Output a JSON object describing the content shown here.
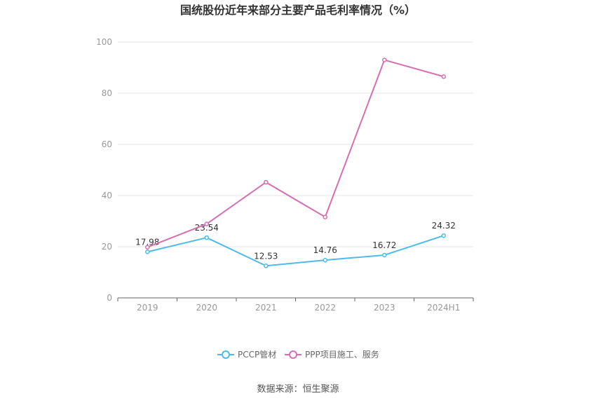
{
  "chart_data": {
    "type": "line",
    "title": "国统股份近年来部分主要产品毛利率情况（%）",
    "categories": [
      "2019",
      "2020",
      "2021",
      "2022",
      "2023",
      "2024H1"
    ],
    "ylim": [
      0,
      100
    ],
    "yticks": [
      "0",
      "20",
      "40",
      "60",
      "80",
      "100"
    ],
    "grid": true,
    "legend_position": "bottom",
    "series": [
      {
        "name": "PCCP管材",
        "color": "#4dbbe8",
        "values": [
          17.98,
          23.54,
          12.53,
          14.76,
          16.72,
          24.32
        ],
        "labels": [
          "17.98",
          "23.54",
          "12.53",
          "14.76",
          "16.72",
          "24.32"
        ]
      },
      {
        "name": "PPP项目施工、服务",
        "color": "#d46fb4",
        "values": [
          19.8,
          28.9,
          45.2,
          31.6,
          93.0,
          86.5
        ]
      }
    ]
  },
  "footer": {
    "source": "数据来源：恒生聚源"
  }
}
